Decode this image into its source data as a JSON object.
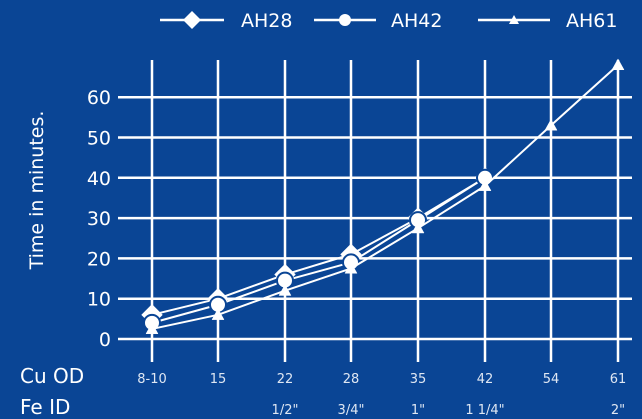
{
  "chart_data": {
    "type": "line",
    "title": "",
    "ylabel": "Time in minutes.",
    "row_labels": {
      "cu": "Cu OD",
      "fe": "Fe ID"
    },
    "categories": [
      "8-10",
      "15",
      "22",
      "28",
      "35",
      "42",
      "54",
      "61"
    ],
    "fe_labels": [
      "",
      "",
      "1/2\"",
      "3/4\"",
      "1\"",
      "1 1/4\"",
      "",
      "2\""
    ],
    "ylim": [
      0,
      68
    ],
    "yticks": [
      0,
      10,
      20,
      30,
      40,
      50,
      60
    ],
    "grid": true,
    "legend_position": "top",
    "series": [
      {
        "name": "AH28",
        "marker": "diamond",
        "values": [
          6,
          10,
          16,
          21,
          30,
          40,
          null,
          null
        ]
      },
      {
        "name": "AH42",
        "marker": "circle",
        "values": [
          4,
          8.5,
          14.5,
          19,
          29.5,
          40,
          null,
          null
        ]
      },
      {
        "name": "AH61",
        "marker": "triangle",
        "values": [
          2.5,
          6,
          12,
          17.5,
          27.5,
          38,
          53,
          68
        ]
      }
    ],
    "colors": {
      "background": "#0a4595",
      "foreground": "#ffffff"
    }
  }
}
